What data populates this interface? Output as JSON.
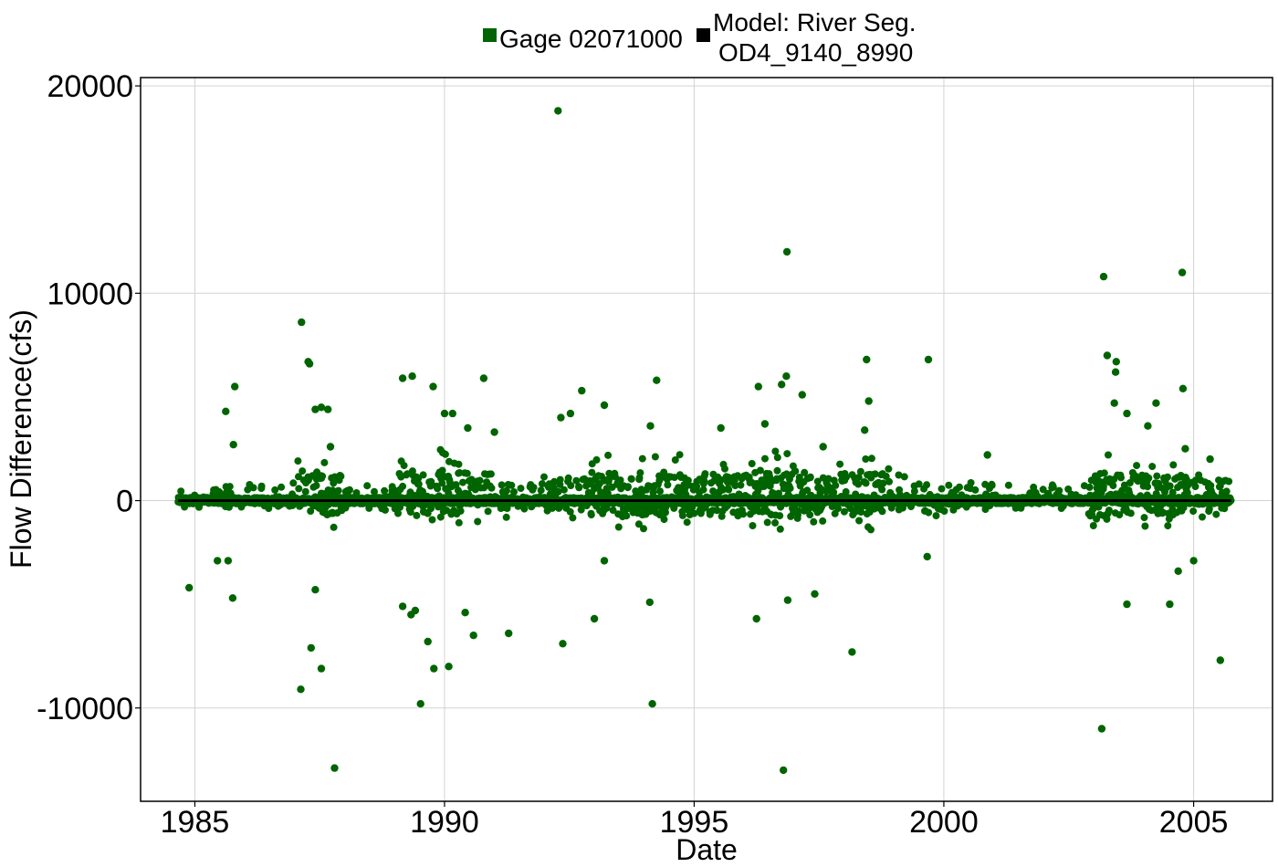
{
  "chart_data": {
    "type": "scatter",
    "title": "",
    "xlabel": "Date",
    "ylabel": "Flow Difference(cfs)",
    "xlim": [
      "1983-12-01",
      "2006-08-01"
    ],
    "ylim": [
      -14500,
      20400
    ],
    "x_ticks": [
      "1985",
      "1990",
      "1995",
      "2000",
      "2005"
    ],
    "y_ticks": [
      "-10000",
      "0",
      "10000",
      "20000"
    ],
    "grid": true,
    "legend": {
      "placement": "top",
      "entries": [
        {
          "label": "Gage 02071000",
          "color": "#006400"
        },
        {
          "label_lines": [
            "Model: River Seg.",
            "OD4_9140_8990"
          ],
          "color": "#000000"
        }
      ]
    },
    "series": [
      {
        "name": "Gage 02071000",
        "color": "#006400",
        "marker": "circle",
        "note_on_density": "dense daily cloud mostly within -2000..+2500 cfs from 1984-09 to 2005-10",
        "points": [
          [
            "1984-11-20",
            -4200
          ],
          [
            "1985-08-15",
            4300
          ],
          [
            "1985-10-20",
            5500
          ],
          [
            "1985-10-05",
            -4700
          ],
          [
            "1985-10-10",
            2700
          ],
          [
            "1985-09-01",
            -2900
          ],
          [
            "1985-06-15",
            -2900
          ],
          [
            "1987-02-20",
            8600
          ],
          [
            "1987-04-10",
            6700
          ],
          [
            "1987-04-20",
            6600
          ],
          [
            "1987-06-01",
            4400
          ],
          [
            "1987-07-15",
            4500
          ],
          [
            "1987-09-01",
            4400
          ],
          [
            "1987-09-20",
            2600
          ],
          [
            "1987-02-15",
            -9100
          ],
          [
            "1987-05-01",
            -7100
          ],
          [
            "1987-07-15",
            -8100
          ],
          [
            "1987-10-20",
            -12900
          ],
          [
            "1987-06-01",
            -4300
          ],
          [
            "1989-03-01",
            5900
          ],
          [
            "1989-05-10",
            6000
          ],
          [
            "1989-10-10",
            5500
          ],
          [
            "1989-03-01",
            -5100
          ],
          [
            "1989-05-01",
            -5500
          ],
          [
            "1989-06-01",
            -5300
          ],
          [
            "1989-07-10",
            -9800
          ],
          [
            "1989-09-01",
            -6800
          ],
          [
            "1989-10-15",
            -8100
          ],
          [
            "1990-02-01",
            -8000
          ],
          [
            "1990-06-01",
            -5400
          ],
          [
            "1990-08-01",
            -6500
          ],
          [
            "1990-01-01",
            4200
          ],
          [
            "1990-03-01",
            4200
          ],
          [
            "1990-06-20",
            3500
          ],
          [
            "1990-10-15",
            5900
          ],
          [
            "1991-04-15",
            -6400
          ],
          [
            "1991-01-01",
            3300
          ],
          [
            "1992-04-10",
            18800
          ],
          [
            "1992-05-15",
            -6900
          ],
          [
            "1992-05-01",
            4000
          ],
          [
            "1992-07-10",
            4200
          ],
          [
            "1992-10-01",
            5300
          ],
          [
            "1993-03-15",
            4600
          ],
          [
            "1993-01-01",
            -5700
          ],
          [
            "1993-03-15",
            -2900
          ],
          [
            "1994-02-15",
            3600
          ],
          [
            "1994-04-01",
            5800
          ],
          [
            "1994-03-01",
            -9800
          ],
          [
            "1994-02-10",
            -4900
          ],
          [
            "1995-07-15",
            3500
          ],
          [
            "1996-04-15",
            5500
          ],
          [
            "1996-04-01",
            -5700
          ],
          [
            "1996-06-01",
            3700
          ],
          [
            "1996-10-01",
            5600
          ],
          [
            "1996-11-05",
            6000
          ],
          [
            "1996-11-10",
            12000
          ],
          [
            "1996-10-15",
            -13000
          ],
          [
            "1996-11-15",
            -4800
          ],
          [
            "1997-03-01",
            5100
          ],
          [
            "1997-06-01",
            -4500
          ],
          [
            "1997-08-01",
            2600
          ],
          [
            "1998-03-01",
            -7300
          ],
          [
            "1998-06-15",
            6800
          ],
          [
            "1998-07-01",
            4800
          ],
          [
            "1998-06-01",
            3400
          ],
          [
            "1999-09-10",
            6800
          ],
          [
            "1999-09-01",
            -2700
          ],
          [
            "2000-11-15",
            2200
          ],
          [
            "2003-03-15",
            10800
          ],
          [
            "2003-04-10",
            7000
          ],
          [
            "2003-06-15",
            6700
          ],
          [
            "2003-06-10",
            6200
          ],
          [
            "2003-06-01",
            4700
          ],
          [
            "2003-09-01",
            4200
          ],
          [
            "2003-03-01",
            -11000
          ],
          [
            "2003-09-01",
            -5000
          ],
          [
            "2004-02-01",
            3600
          ],
          [
            "2004-04-01",
            4700
          ],
          [
            "2004-07-10",
            -5000
          ],
          [
            "2004-09-10",
            -3400
          ],
          [
            "2004-10-10",
            11000
          ],
          [
            "2004-10-15",
            5400
          ],
          [
            "2004-11-01",
            2500
          ],
          [
            "2005-01-01",
            -2900
          ],
          [
            "2005-07-15",
            -7700
          ],
          [
            "2005-05-01",
            2000
          ]
        ]
      },
      {
        "name": "Model: River Seg. OD4_9140_8990",
        "color": "#000000",
        "type": "line",
        "points": [
          [
            "1984-09-01",
            0
          ],
          [
            "2005-10-01",
            0
          ]
        ]
      }
    ]
  }
}
